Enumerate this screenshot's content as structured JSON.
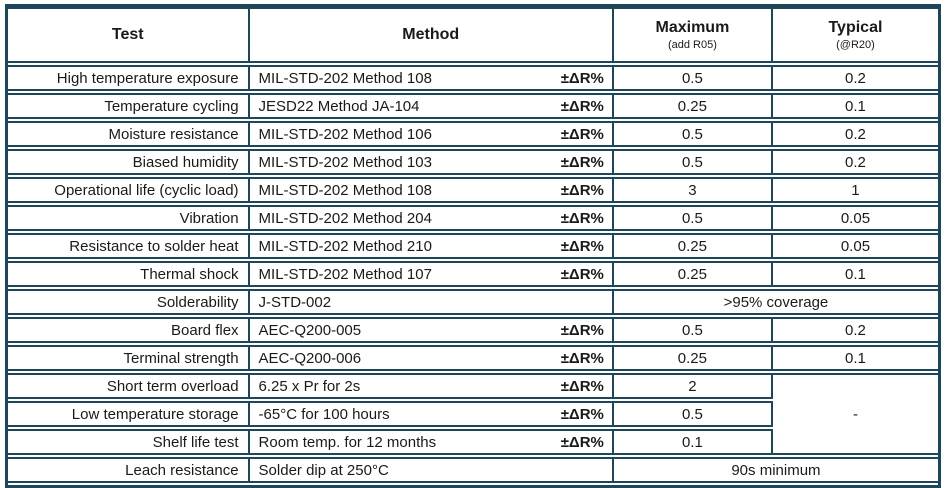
{
  "colors": {
    "border": "#1e4659",
    "text": "#1a1a1a"
  },
  "header": {
    "test": "Test",
    "method": "Method",
    "maximum": "Maximum",
    "maximum_sub": "(add R05)",
    "typical": "Typical",
    "typical_sub": "(@R20)"
  },
  "labels": {
    "delta": "±ΔR%"
  },
  "rows": [
    {
      "test": "High temperature exposure",
      "method": "MIL-STD-202 Method 108",
      "delta": "±ΔR%",
      "maximum": "0.5",
      "typical": "0.2"
    },
    {
      "test": "Temperature cycling",
      "method": "JESD22 Method JA-104",
      "delta": "±ΔR%",
      "maximum": "0.25",
      "typical": "0.1"
    },
    {
      "test": "Moisture resistance",
      "method": "MIL-STD-202 Method 106",
      "delta": "±ΔR%",
      "maximum": "0.5",
      "typical": "0.2"
    },
    {
      "test": "Biased humidity",
      "method": "MIL-STD-202 Method 103",
      "delta": "±ΔR%",
      "maximum": "0.5",
      "typical": "0.2"
    },
    {
      "test": "Operational life (cyclic load)",
      "method": "MIL-STD-202 Method 108",
      "delta": "±ΔR%",
      "maximum": "3",
      "typical": "1"
    },
    {
      "test": "Vibration",
      "method": "MIL-STD-202 Method 204",
      "delta": "±ΔR%",
      "maximum": "0.5",
      "typical": "0.05"
    },
    {
      "test": "Resistance to solder heat",
      "method": "MIL-STD-202 Method 210",
      "delta": "±ΔR%",
      "maximum": "0.25",
      "typical": "0.05"
    },
    {
      "test": "Thermal shock",
      "method": "MIL-STD-202 Method 107",
      "delta": "±ΔR%",
      "maximum": "0.25",
      "typical": "0.1"
    },
    {
      "test": "Solderability",
      "method": "J-STD-002",
      "merged_value": ">95% coverage"
    },
    {
      "test": "Board flex",
      "method": "AEC-Q200-005",
      "delta": "±ΔR%",
      "maximum": "0.5",
      "typical": "0.2"
    },
    {
      "test": "Terminal strength",
      "method": "AEC-Q200-006",
      "delta": "±ΔR%",
      "maximum": "0.25",
      "typical": "0.1"
    },
    {
      "test": "Short term overload",
      "method": "6.25 x Pr for 2s",
      "delta": "±ΔR%",
      "maximum": "2",
      "typical_merged": "-"
    },
    {
      "test": "Low temperature storage",
      "method": "-65°C for 100 hours",
      "delta": "±ΔR%",
      "maximum": "0.5"
    },
    {
      "test": "Shelf life test",
      "method": "Room temp. for 12 months",
      "delta": "±ΔR%",
      "maximum": "0.1"
    },
    {
      "test": "Leach resistance",
      "method": "Solder dip at 250°C",
      "merged_value": "90s minimum"
    }
  ]
}
